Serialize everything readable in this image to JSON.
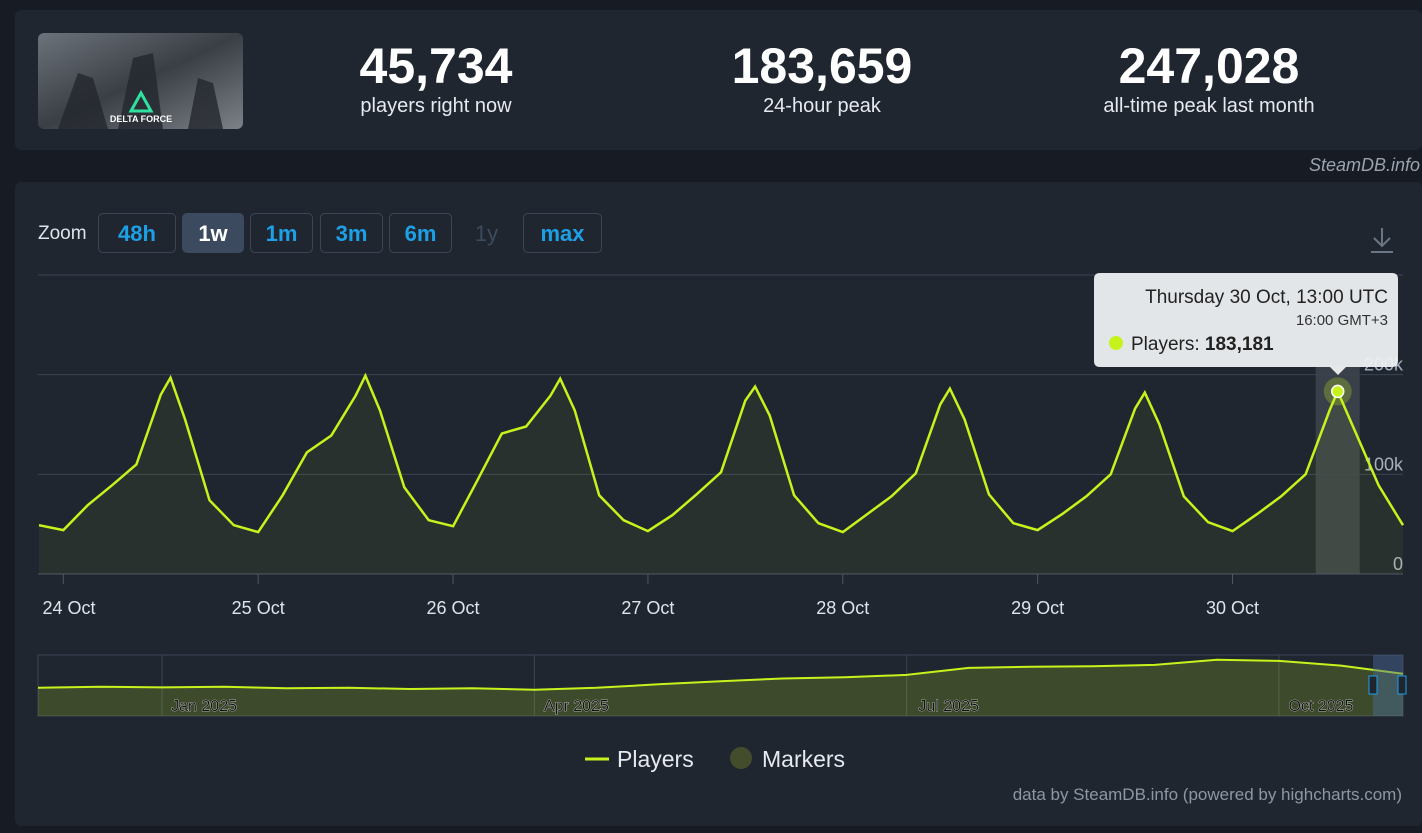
{
  "header": {
    "game_title": "DELTA FORCE",
    "stats": [
      {
        "value": "45,734",
        "label": "players right now"
      },
      {
        "value": "183,659",
        "label": "24-hour peak"
      },
      {
        "value": "247,028",
        "label": "all-time peak last month"
      }
    ],
    "watermark": "SteamDB.info"
  },
  "zoom": {
    "label": "Zoom",
    "buttons": [
      "48h",
      "1w",
      "1m",
      "3m",
      "6m",
      "1y",
      "max"
    ],
    "active": "1w",
    "disabled": "1y"
  },
  "credit": "data by SteamDB.info (powered by highcharts.com)",
  "chart_data": [
    {
      "type": "line",
      "x": [
        23.875,
        24,
        24.125,
        24.25,
        24.375,
        24.5,
        24.55,
        24.625,
        24.75,
        24.875,
        25,
        25.125,
        25.25,
        25.375,
        25.5,
        25.55,
        25.625,
        25.75,
        25.875,
        26,
        26.125,
        26.25,
        26.375,
        26.5,
        26.55,
        26.625,
        26.75,
        26.875,
        27,
        27.125,
        27.25,
        27.375,
        27.5,
        27.55,
        27.625,
        27.75,
        27.875,
        28,
        28.125,
        28.25,
        28.375,
        28.5,
        28.55,
        28.625,
        28.75,
        28.875,
        29,
        29.125,
        29.25,
        29.375,
        29.5,
        29.55,
        29.625,
        29.75,
        29.875,
        30,
        30.125,
        30.25,
        30.375,
        30.5,
        30.54,
        30.625,
        30.75,
        30.875
      ],
      "series": [
        {
          "name": "Players",
          "color": "#c6f31c",
          "values": [
            49000,
            44000,
            69000,
            89000,
            110000,
            180000,
            197000,
            155000,
            74000,
            49000,
            42000,
            79000,
            122000,
            139000,
            179000,
            199000,
            164000,
            87000,
            54000,
            48000,
            94000,
            141000,
            148000,
            179000,
            196000,
            164000,
            79000,
            54000,
            43000,
            59000,
            80000,
            102000,
            174000,
            188000,
            159000,
            79000,
            51000,
            42000,
            60000,
            78000,
            101000,
            170000,
            186000,
            155000,
            80000,
            51000,
            44000,
            60000,
            78000,
            100000,
            166000,
            182000,
            150000,
            78000,
            52000,
            43000,
            60000,
            78000,
            100000,
            165000,
            183181,
            145000,
            89000,
            49000
          ]
        }
      ],
      "extra_legend": {
        "name": "Markers",
        "color": "#434d2c"
      },
      "xlim": [
        23.87,
        30.875
      ],
      "xticks": [
        {
          "value": 24,
          "label": "24 Oct"
        },
        {
          "value": 25,
          "label": "25 Oct"
        },
        {
          "value": 26,
          "label": "26 Oct"
        },
        {
          "value": 27,
          "label": "27 Oct"
        },
        {
          "value": 28,
          "label": "28 Oct"
        },
        {
          "value": 29,
          "label": "29 Oct"
        },
        {
          "value": 30,
          "label": "30 Oct"
        }
      ],
      "ylim": [
        0,
        300000
      ],
      "yticks": [
        0,
        {
          "value": 100000,
          "label": "100k"
        },
        {
          "value": 200000,
          "label": "200k"
        }
      ],
      "grid": true,
      "tooltip": {
        "title": "Thursday 30 Oct, 13:00 UTC",
        "local_time": "16:00 GMT+3",
        "series_label": "Players:",
        "value": "183,181"
      }
    },
    {
      "type": "area",
      "categories": [
        null,
        null,
        "Jan 2025",
        null,
        null,
        null,
        null,
        null,
        "Apr 2025",
        null,
        null,
        null,
        null,
        null,
        "Jul 2025",
        null,
        null,
        null,
        null,
        null,
        "Oct 2025",
        null,
        null
      ],
      "series": [
        {
          "name": "Players",
          "color": "#c6f31c",
          "values": [
            120000,
            125000,
            122000,
            125000,
            118000,
            120000,
            115000,
            118000,
            112000,
            120000,
            135000,
            148000,
            160000,
            165000,
            175000,
            205000,
            210000,
            212000,
            218000,
            240000,
            235000,
            215000,
            180000
          ]
        }
      ],
      "ylim": [
        0,
        260000
      ]
    }
  ]
}
